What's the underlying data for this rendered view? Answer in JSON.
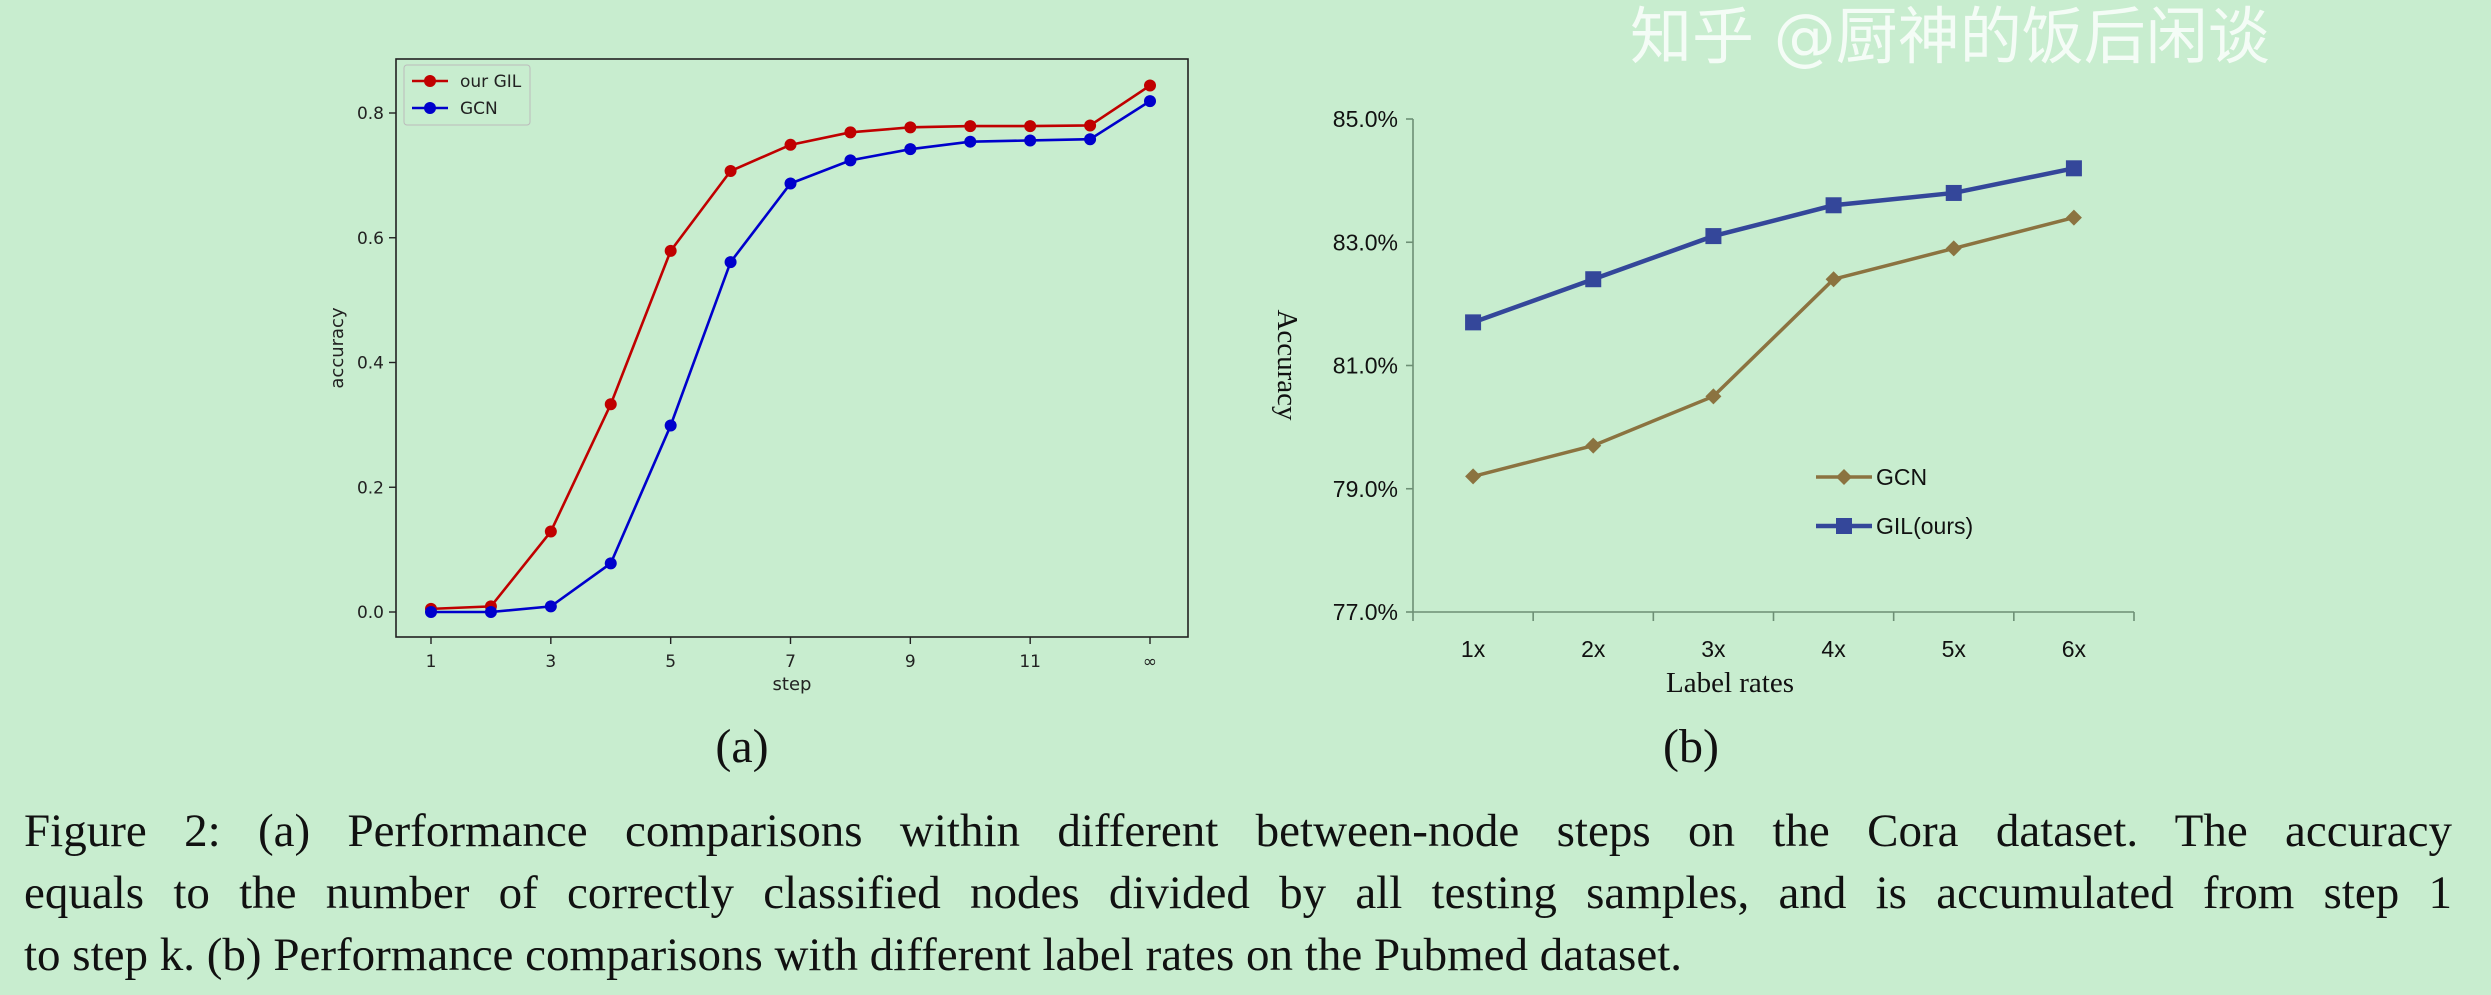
{
  "chart_data": [
    {
      "type": "line",
      "panel_label": "(a)",
      "xlabel": "step",
      "ylabel": "accuracy",
      "categories": [
        "1",
        "2",
        "3",
        "4",
        "5",
        "6",
        "7",
        "8",
        "9",
        "10",
        "11",
        "12",
        "∞"
      ],
      "xtick_labels": [
        "1",
        "3",
        "5",
        "7",
        "9",
        "11",
        "∞"
      ],
      "yticks": [
        "0.0",
        "0.2",
        "0.4",
        "0.6",
        "0.8"
      ],
      "ylim": [
        -0.04,
        0.88
      ],
      "grid": false,
      "legend": "top-left",
      "series": [
        {
          "name": "our GIL",
          "color": "#c00000",
          "marker": "circle",
          "values": [
            0.005,
            0.009,
            0.129,
            0.333,
            0.579,
            0.707,
            0.749,
            0.769,
            0.777,
            0.779,
            0.779,
            0.78,
            0.844
          ]
        },
        {
          "name": "GCN",
          "color": "#0000cc",
          "marker": "circle",
          "values": [
            0.0,
            0.0,
            0.009,
            0.078,
            0.299,
            0.561,
            0.687,
            0.724,
            0.742,
            0.754,
            0.756,
            0.758,
            0.819
          ]
        }
      ]
    },
    {
      "type": "line",
      "panel_label": "(b)",
      "xlabel": "Label rates",
      "ylabel": "Accuracy",
      "categories": [
        "1x",
        "2x",
        "3x",
        "4x",
        "5x",
        "6x"
      ],
      "yticks": [
        "77.0%",
        "79.0%",
        "81.0%",
        "83.0%",
        "85.0%"
      ],
      "ylim": [
        77.0,
        85.0
      ],
      "grid": false,
      "legend": "lower-right",
      "series": [
        {
          "name": "GCN",
          "color": "#8b7340",
          "marker": "diamond",
          "values": [
            79.2,
            79.7,
            80.5,
            82.4,
            82.9,
            83.4
          ]
        },
        {
          "name": "GIL(ours)",
          "color": "#34479a",
          "marker": "square",
          "values": [
            81.7,
            82.4,
            83.1,
            83.6,
            83.8,
            84.2
          ]
        }
      ]
    }
  ],
  "caption": {
    "line1": "Figure 2: (a) Performance comparisons within different between-node steps on the Cora dataset. The accuracy",
    "line2": "equals to the number of correctly classified nodes divided by all testing samples, and is accumulated from step 1",
    "line3": "to step k. (b) Performance comparisons with different label rates on the Pubmed dataset."
  },
  "watermark": "知乎 @厨神的饭后闲谈"
}
